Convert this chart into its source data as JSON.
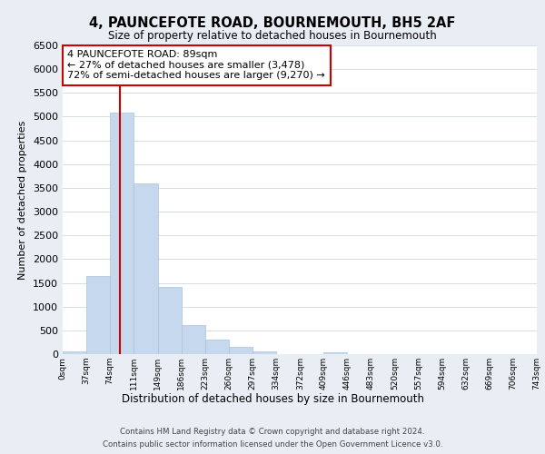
{
  "title": "4, PAUNCEFOTE ROAD, BOURNEMOUTH, BH5 2AF",
  "subtitle": "Size of property relative to detached houses in Bournemouth",
  "xlabel": "Distribution of detached houses by size in Bournemouth",
  "ylabel": "Number of detached properties",
  "footer_line1": "Contains HM Land Registry data © Crown copyright and database right 2024.",
  "footer_line2": "Contains public sector information licensed under the Open Government Licence v3.0.",
  "bar_edges": [
    0,
    37,
    74,
    111,
    149,
    186,
    223,
    260,
    297,
    334,
    372,
    409,
    446,
    483,
    520,
    557,
    594,
    632,
    669,
    706,
    743
  ],
  "bar_heights": [
    50,
    1650,
    5080,
    3600,
    1420,
    610,
    300,
    150,
    60,
    0,
    0,
    30,
    0,
    0,
    0,
    0,
    0,
    0,
    0,
    0
  ],
  "bar_color": "#c5d8ed",
  "bar_edgecolor": "#a8c4de",
  "vline_x": 89,
  "vline_color": "#cc0000",
  "ylim": [
    0,
    6500
  ],
  "yticks": [
    0,
    500,
    1000,
    1500,
    2000,
    2500,
    3000,
    3500,
    4000,
    4500,
    5000,
    5500,
    6000,
    6500
  ],
  "tick_labels": [
    "0sqm",
    "37sqm",
    "74sqm",
    "111sqm",
    "149sqm",
    "186sqm",
    "223sqm",
    "260sqm",
    "297sqm",
    "334sqm",
    "372sqm",
    "409sqm",
    "446sqm",
    "483sqm",
    "520sqm",
    "557sqm",
    "594sqm",
    "632sqm",
    "669sqm",
    "706sqm",
    "743sqm"
  ],
  "annotation_title": "4 PAUNCEFOTE ROAD: 89sqm",
  "annotation_line1": "← 27% of detached houses are smaller (3,478)",
  "annotation_line2": "72% of semi-detached houses are larger (9,270) →",
  "bg_color": "#e8eef4",
  "plot_bg_color": "#ffffff",
  "grid_color": "#d0d8e0"
}
